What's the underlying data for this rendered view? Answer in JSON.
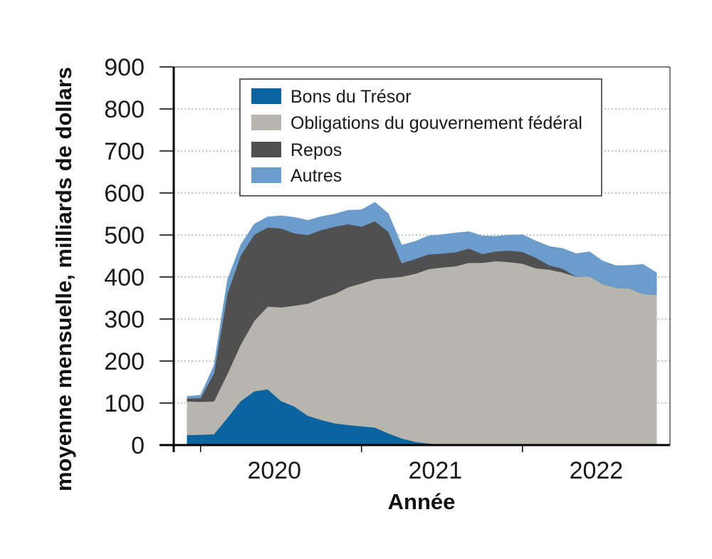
{
  "chart_data": {
    "type": "area",
    "stacked": true,
    "xlabel": "Année",
    "ylabel": "moyenne mensuelle, milliards de dollars",
    "ylim": [
      0,
      900
    ],
    "yticks": [
      0,
      100,
      200,
      300,
      400,
      500,
      600,
      700,
      800,
      900
    ],
    "xtick_labels": [
      "2020",
      "2021",
      "2022"
    ],
    "xlim": [
      "2019-11",
      "2022-12"
    ],
    "grid": "horizontal dotted",
    "legend_position": "top-center",
    "x": [
      "2019-12",
      "2020-01",
      "2020-02",
      "2020-03",
      "2020-04",
      "2020-05",
      "2020-06",
      "2020-07",
      "2020-08",
      "2020-09",
      "2020-10",
      "2020-11",
      "2020-12",
      "2021-01",
      "2021-02",
      "2021-03",
      "2021-04",
      "2021-05",
      "2021-06",
      "2021-07",
      "2021-08",
      "2021-09",
      "2021-10",
      "2021-11",
      "2021-12",
      "2022-01",
      "2022-02",
      "2022-03",
      "2022-04",
      "2022-05",
      "2022-06",
      "2022-07",
      "2022-08",
      "2022-09",
      "2022-10",
      "2022-11"
    ],
    "series": [
      {
        "name": "Bons du Trésor",
        "color": "#0b64a0",
        "values": [
          24,
          25,
          26,
          65,
          105,
          128,
          133,
          105,
          92,
          70,
          60,
          52,
          48,
          45,
          42,
          28,
          16,
          8,
          4,
          2,
          1,
          0,
          0,
          0,
          0,
          0,
          0,
          0,
          0,
          0,
          0,
          0,
          0,
          0,
          0,
          0
        ]
      },
      {
        "name": "Obligations du gouvernement fédéral",
        "color": "#b7b6ae",
        "values": [
          80,
          78,
          78,
          105,
          135,
          168,
          197,
          223,
          240,
          267,
          290,
          308,
          328,
          340,
          353,
          370,
          385,
          400,
          415,
          421,
          425,
          434,
          434,
          438,
          436,
          432,
          421,
          418,
          411,
          401,
          402,
          383,
          375,
          373,
          360,
          358
        ]
      },
      {
        "name": "Repos",
        "color": "#505050",
        "values": [
          2,
          3,
          2,
          0,
          0,
          0,
          0,
          0,
          0,
          0,
          0,
          0,
          0,
          0,
          0,
          0,
          0,
          0,
          0,
          0,
          0,
          0,
          0,
          0,
          0,
          0,
          0,
          0,
          0,
          0,
          0,
          0,
          0,
          0,
          0,
          0
        ]
      },
      {
        "name": "Repos",
        "color": "#505050",
        "values": [
          5,
          6,
          65,
          191,
          212,
          205,
          188,
          188,
          172,
          163,
          162,
          160,
          150,
          135,
          138,
          110,
          32,
          35,
          35,
          33,
          33,
          34,
          21,
          23,
          27,
          28,
          25,
          10,
          9,
          0,
          0,
          0,
          0,
          0,
          0,
          0
        ]
      },
      {
        "name": "Autres",
        "color": "#6b9ccb",
        "values": [
          5,
          7,
          18,
          32,
          25,
          25,
          25,
          30,
          38,
          35,
          32,
          30,
          33,
          40,
          45,
          43,
          43,
          42,
          44,
          45,
          46,
          40,
          43,
          36,
          37,
          41,
          40,
          45,
          48,
          55,
          58,
          55,
          52,
          55,
          70,
          52
        ]
      }
    ]
  },
  "legend_labels": {
    "series_0": "Bons du Trésor",
    "series_1": "Obligations du gouvernement fédéral",
    "series_2": "Repos",
    "series_3": "Autres"
  }
}
